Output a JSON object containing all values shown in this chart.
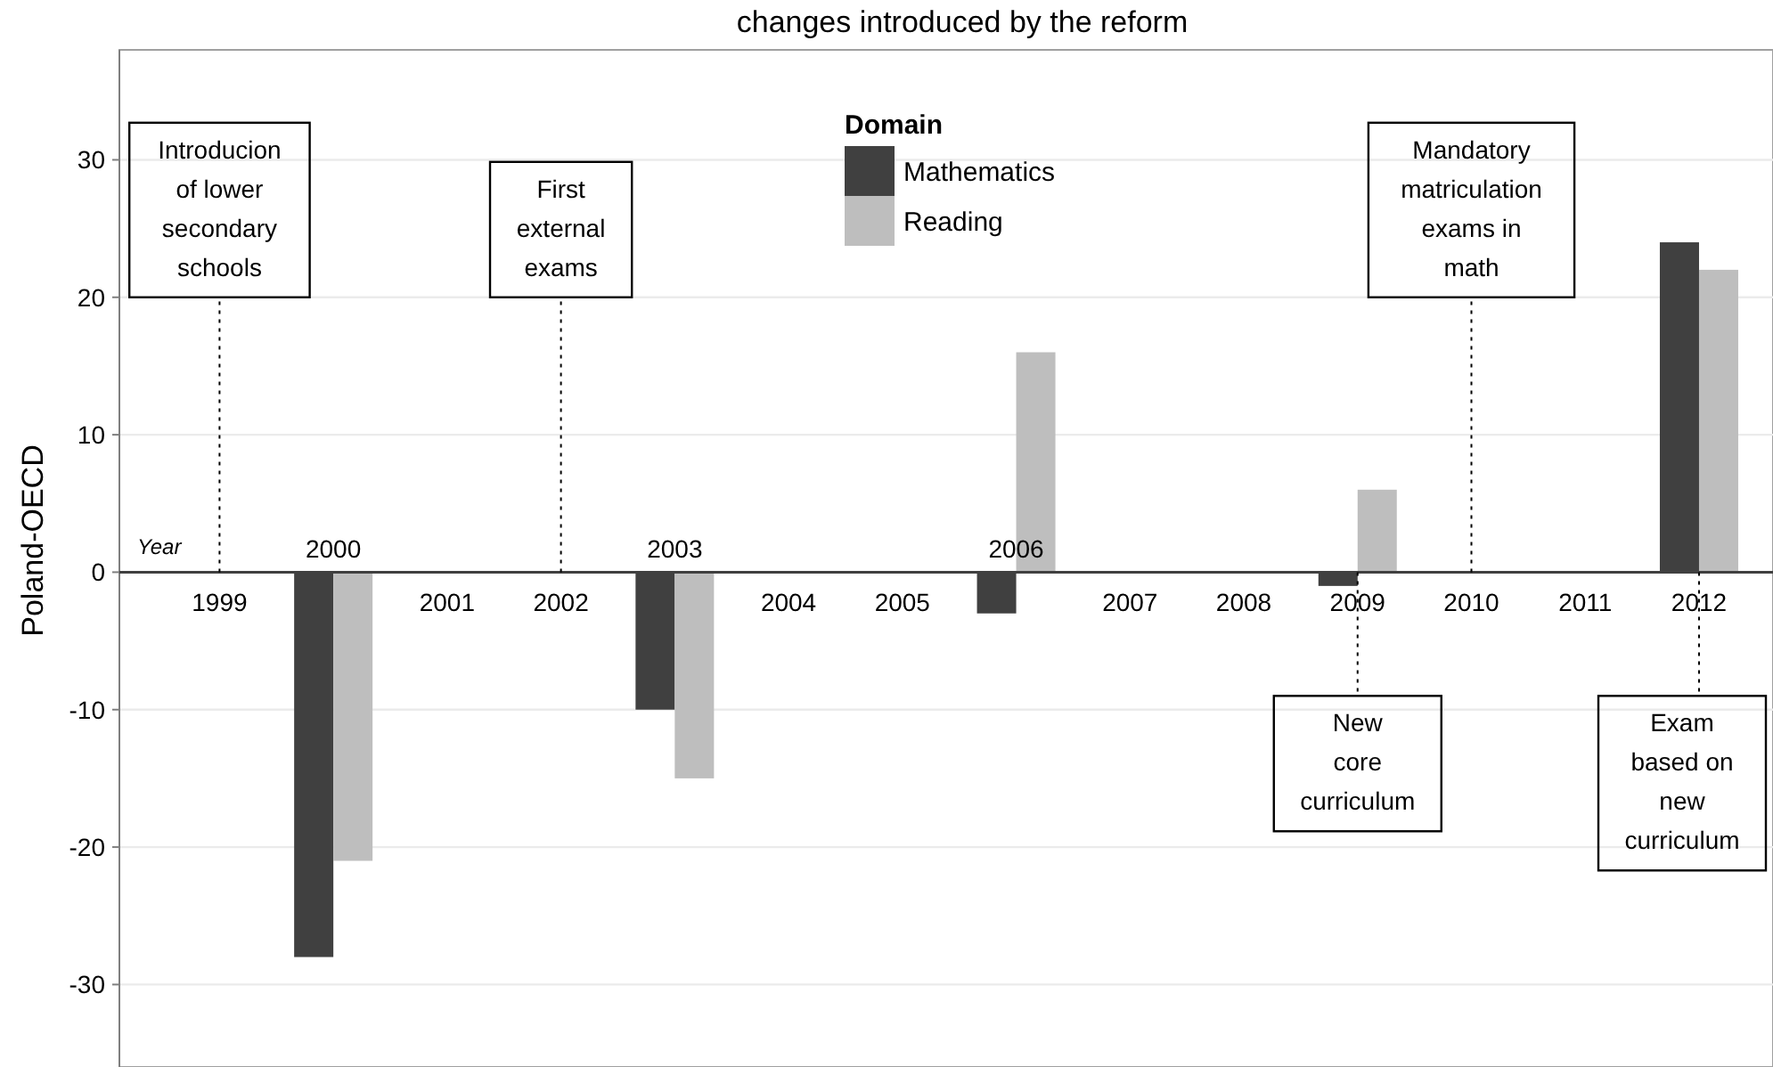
{
  "chart_data": {
    "type": "bar",
    "title": "changes introduced by the reform",
    "ylabel": "Poland-OECD",
    "legend_title": "Domain",
    "legend": "top",
    "grid": true,
    "categories": [
      "1999",
      "2000",
      "2001",
      "2002",
      "2003",
      "2004",
      "2005",
      "2006",
      "2007",
      "2008",
      "2009",
      "2010",
      "2011",
      "2012"
    ],
    "series": [
      {
        "name": "Mathematics",
        "color": "#404040",
        "values": [
          null,
          -28,
          null,
          null,
          -10,
          null,
          null,
          -3,
          null,
          null,
          -1,
          null,
          null,
          24
        ]
      },
      {
        "name": "Reading",
        "color": "#bebebe",
        "values": [
          null,
          -21,
          null,
          null,
          -15,
          null,
          null,
          16,
          null,
          null,
          6,
          null,
          null,
          22
        ]
      }
    ],
    "ylim": [
      -36,
      38
    ],
    "yticks": [
      -30,
      -20,
      -10,
      0,
      10,
      20,
      30
    ],
    "annotations": [
      "Year"
    ],
    "ref_lines": [
      {
        "axis": "x",
        "value": "1999",
        "label": "Introducion of lower secondary schools",
        "line_style": "dotted"
      },
      {
        "axis": "x",
        "value": "2002",
        "label": "First external exams",
        "line_style": "dotted"
      },
      {
        "axis": "x",
        "value": "2009",
        "label": "New core curriculum",
        "line_style": "dotted"
      },
      {
        "axis": "x",
        "value": "2010",
        "label": "Mandatory matriculation exams in math",
        "line_style": "dotted"
      },
      {
        "axis": "x",
        "value": "2012",
        "label": "Exam based on new curriculum",
        "line_style": "dotted"
      }
    ]
  }
}
